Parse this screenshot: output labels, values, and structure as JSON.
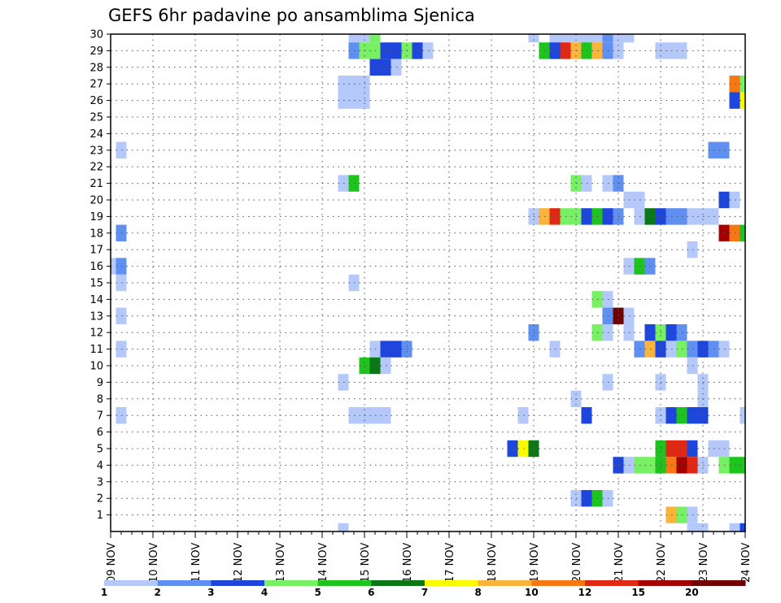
{
  "chart_data": {
    "type": "heatmap",
    "title": "GEFS 6hr padavine po ansamblima Sjenica",
    "xlabel": "",
    "ylabel": "",
    "x_labels": [
      "09 NOV",
      "10 NOV",
      "11 NOV",
      "12 NOV",
      "13 NOV",
      "14 NOV",
      "15 NOV",
      "16 NOV",
      "17 NOV",
      "18 NOV",
      "19 NOV",
      "20 NOV",
      "21 NOV",
      "22 NOV",
      "23 NOV",
      "24 NOV"
    ],
    "y_labels": [
      "1",
      "2",
      "3",
      "4",
      "5",
      "6",
      "7",
      "8",
      "9",
      "10",
      "11",
      "12",
      "13",
      "14",
      "15",
      "16",
      "17",
      "18",
      "19",
      "20",
      "21",
      "22",
      "23",
      "24",
      "25",
      "26",
      "27",
      "28",
      "29",
      "30"
    ],
    "y_range": [
      0,
      30
    ],
    "x_range_steps": [
      0,
      60
    ],
    "steps_per_day": 4,
    "grid": true,
    "legend_position": "bottom",
    "legend_labels": [
      "1",
      "2",
      "3",
      "4",
      "5",
      "6",
      "7",
      "8",
      "10",
      "12",
      "15",
      "20"
    ],
    "colors": [
      "#b4c8fa",
      "#5f8ff0",
      "#1e46dc",
      "#78f064",
      "#1ec31e",
      "#0a7814",
      "#fafa00",
      "#fab43c",
      "#f57814",
      "#e12814",
      "#a50000",
      "#6e0000"
    ],
    "cells": [
      {
        "member": 30,
        "step": 23,
        "class": 1
      },
      {
        "member": 30,
        "step": 24,
        "class": 1
      },
      {
        "member": 30,
        "step": 25,
        "class": 4
      },
      {
        "member": 30,
        "step": 40,
        "class": 1
      },
      {
        "member": 30,
        "step": 42,
        "class": 1
      },
      {
        "member": 30,
        "step": 43,
        "class": 1
      },
      {
        "member": 30,
        "step": 44,
        "class": 1
      },
      {
        "member": 30,
        "step": 45,
        "class": 1
      },
      {
        "member": 30,
        "step": 46,
        "class": 1
      },
      {
        "member": 30,
        "step": 47,
        "class": 2
      },
      {
        "member": 30,
        "step": 48,
        "class": 1
      },
      {
        "member": 30,
        "step": 49,
        "class": 1
      },
      {
        "member": 29,
        "step": 23,
        "class": 2
      },
      {
        "member": 29,
        "step": 24,
        "class": 4
      },
      {
        "member": 29,
        "step": 25,
        "class": 4
      },
      {
        "member": 29,
        "step": 26,
        "class": 3
      },
      {
        "member": 29,
        "step": 27,
        "class": 3
      },
      {
        "member": 29,
        "step": 28,
        "class": 4
      },
      {
        "member": 29,
        "step": 29,
        "class": 3
      },
      {
        "member": 29,
        "step": 30,
        "class": 1
      },
      {
        "member": 29,
        "step": 41,
        "class": 5
      },
      {
        "member": 29,
        "step": 42,
        "class": 3
      },
      {
        "member": 29,
        "step": 43,
        "class": 10
      },
      {
        "member": 29,
        "step": 44,
        "class": 8
      },
      {
        "member": 29,
        "step": 45,
        "class": 5
      },
      {
        "member": 29,
        "step": 46,
        "class": 8
      },
      {
        "member": 29,
        "step": 47,
        "class": 2
      },
      {
        "member": 29,
        "step": 48,
        "class": 1
      },
      {
        "member": 29,
        "step": 52,
        "class": 1
      },
      {
        "member": 29,
        "step": 53,
        "class": 1
      },
      {
        "member": 29,
        "step": 54,
        "class": 1
      },
      {
        "member": 28,
        "step": 25,
        "class": 3
      },
      {
        "member": 28,
        "step": 26,
        "class": 3
      },
      {
        "member": 28,
        "step": 27,
        "class": 1
      },
      {
        "member": 27,
        "step": 22,
        "class": 1
      },
      {
        "member": 27,
        "step": 23,
        "class": 1
      },
      {
        "member": 27,
        "step": 24,
        "class": 1
      },
      {
        "member": 27,
        "step": 59,
        "class": 9
      },
      {
        "member": 27,
        "step": 60,
        "class": 4
      },
      {
        "member": 26,
        "step": 22,
        "class": 1
      },
      {
        "member": 26,
        "step": 23,
        "class": 1
      },
      {
        "member": 26,
        "step": 24,
        "class": 1
      },
      {
        "member": 26,
        "step": 59,
        "class": 3
      },
      {
        "member": 26,
        "step": 60,
        "class": 7
      },
      {
        "member": 23,
        "step": 1,
        "class": 1
      },
      {
        "member": 23,
        "step": 57,
        "class": 2
      },
      {
        "member": 23,
        "step": 58,
        "class": 2
      },
      {
        "member": 21,
        "step": 22,
        "class": 1
      },
      {
        "member": 21,
        "step": 23,
        "class": 5
      },
      {
        "member": 21,
        "step": 44,
        "class": 4
      },
      {
        "member": 21,
        "step": 45,
        "class": 1
      },
      {
        "member": 21,
        "step": 47,
        "class": 1
      },
      {
        "member": 21,
        "step": 48,
        "class": 2
      },
      {
        "member": 20,
        "step": 49,
        "class": 1
      },
      {
        "member": 20,
        "step": 50,
        "class": 1
      },
      {
        "member": 20,
        "step": 58,
        "class": 3
      },
      {
        "member": 20,
        "step": 59,
        "class": 1
      },
      {
        "member": 19,
        "step": 40,
        "class": 1
      },
      {
        "member": 19,
        "step": 41,
        "class": 8
      },
      {
        "member": 19,
        "step": 42,
        "class": 10
      },
      {
        "member": 19,
        "step": 43,
        "class": 4
      },
      {
        "member": 19,
        "step": 44,
        "class": 4
      },
      {
        "member": 19,
        "step": 45,
        "class": 3
      },
      {
        "member": 19,
        "step": 46,
        "class": 5
      },
      {
        "member": 19,
        "step": 47,
        "class": 3
      },
      {
        "member": 19,
        "step": 48,
        "class": 2
      },
      {
        "member": 19,
        "step": 50,
        "class": 1
      },
      {
        "member": 19,
        "step": 51,
        "class": 6
      },
      {
        "member": 19,
        "step": 52,
        "class": 3
      },
      {
        "member": 19,
        "step": 53,
        "class": 2
      },
      {
        "member": 19,
        "step": 54,
        "class": 2
      },
      {
        "member": 19,
        "step": 55,
        "class": 1
      },
      {
        "member": 19,
        "step": 56,
        "class": 1
      },
      {
        "member": 19,
        "step": 57,
        "class": 1
      },
      {
        "member": 18,
        "step": 1,
        "class": 2
      },
      {
        "member": 18,
        "step": 58,
        "class": 11
      },
      {
        "member": 18,
        "step": 59,
        "class": 9
      },
      {
        "member": 18,
        "step": 60,
        "class": 5
      },
      {
        "member": 17,
        "step": 55,
        "class": 1
      },
      {
        "member": 16,
        "step": 0,
        "class": 1
      },
      {
        "member": 16,
        "step": 1,
        "class": 2
      },
      {
        "member": 16,
        "step": 49,
        "class": 1
      },
      {
        "member": 16,
        "step": 50,
        "class": 5
      },
      {
        "member": 16,
        "step": 51,
        "class": 2
      },
      {
        "member": 15,
        "step": 1,
        "class": 1
      },
      {
        "member": 15,
        "step": 23,
        "class": 1
      },
      {
        "member": 14,
        "step": 46,
        "class": 4
      },
      {
        "member": 14,
        "step": 47,
        "class": 1
      },
      {
        "member": 13,
        "step": 1,
        "class": 1
      },
      {
        "member": 13,
        "step": 47,
        "class": 2
      },
      {
        "member": 13,
        "step": 48,
        "class": 12
      },
      {
        "member": 13,
        "step": 49,
        "class": 1
      },
      {
        "member": 12,
        "step": 40,
        "class": 2
      },
      {
        "member": 12,
        "step": 46,
        "class": 4
      },
      {
        "member": 12,
        "step": 47,
        "class": 1
      },
      {
        "member": 12,
        "step": 49,
        "class": 1
      },
      {
        "member": 12,
        "step": 51,
        "class": 3
      },
      {
        "member": 12,
        "step": 52,
        "class": 4
      },
      {
        "member": 12,
        "step": 53,
        "class": 3
      },
      {
        "member": 12,
        "step": 54,
        "class": 2
      },
      {
        "member": 11,
        "step": 1,
        "class": 1
      },
      {
        "member": 11,
        "step": 25,
        "class": 1
      },
      {
        "member": 11,
        "step": 26,
        "class": 3
      },
      {
        "member": 11,
        "step": 27,
        "class": 3
      },
      {
        "member": 11,
        "step": 28,
        "class": 2
      },
      {
        "member": 11,
        "step": 42,
        "class": 1
      },
      {
        "member": 11,
        "step": 50,
        "class": 2
      },
      {
        "member": 11,
        "step": 51,
        "class": 8
      },
      {
        "member": 11,
        "step": 52,
        "class": 3
      },
      {
        "member": 11,
        "step": 53,
        "class": 1
      },
      {
        "member": 11,
        "step": 54,
        "class": 4
      },
      {
        "member": 11,
        "step": 55,
        "class": 2
      },
      {
        "member": 11,
        "step": 56,
        "class": 3
      },
      {
        "member": 11,
        "step": 57,
        "class": 2
      },
      {
        "member": 11,
        "step": 58,
        "class": 1
      },
      {
        "member": 10,
        "step": 24,
        "class": 5
      },
      {
        "member": 10,
        "step": 25,
        "class": 6
      },
      {
        "member": 10,
        "step": 26,
        "class": 1
      },
      {
        "member": 10,
        "step": 55,
        "class": 1
      },
      {
        "member": 9,
        "step": 22,
        "class": 1
      },
      {
        "member": 9,
        "step": 47,
        "class": 1
      },
      {
        "member": 9,
        "step": 52,
        "class": 1
      },
      {
        "member": 9,
        "step": 56,
        "class": 1
      },
      {
        "member": 8,
        "step": 44,
        "class": 1
      },
      {
        "member": 8,
        "step": 56,
        "class": 1
      },
      {
        "member": 7,
        "step": 1,
        "class": 1
      },
      {
        "member": 7,
        "step": 23,
        "class": 1
      },
      {
        "member": 7,
        "step": 24,
        "class": 1
      },
      {
        "member": 7,
        "step": 25,
        "class": 1
      },
      {
        "member": 7,
        "step": 26,
        "class": 1
      },
      {
        "member": 7,
        "step": 39,
        "class": 1
      },
      {
        "member": 7,
        "step": 45,
        "class": 3
      },
      {
        "member": 7,
        "step": 52,
        "class": 1
      },
      {
        "member": 7,
        "step": 53,
        "class": 3
      },
      {
        "member": 7,
        "step": 54,
        "class": 5
      },
      {
        "member": 7,
        "step": 55,
        "class": 3
      },
      {
        "member": 7,
        "step": 56,
        "class": 3
      },
      {
        "member": 7,
        "step": 60,
        "class": 1
      },
      {
        "member": 5,
        "step": 38,
        "class": 3
      },
      {
        "member": 5,
        "step": 39,
        "class": 7
      },
      {
        "member": 5,
        "step": 40,
        "class": 6
      },
      {
        "member": 5,
        "step": 52,
        "class": 5
      },
      {
        "member": 5,
        "step": 53,
        "class": 10
      },
      {
        "member": 5,
        "step": 54,
        "class": 10
      },
      {
        "member": 5,
        "step": 55,
        "class": 3
      },
      {
        "member": 5,
        "step": 57,
        "class": 1
      },
      {
        "member": 5,
        "step": 58,
        "class": 1
      },
      {
        "member": 4,
        "step": 48,
        "class": 3
      },
      {
        "member": 4,
        "step": 49,
        "class": 1
      },
      {
        "member": 4,
        "step": 50,
        "class": 4
      },
      {
        "member": 4,
        "step": 51,
        "class": 4
      },
      {
        "member": 4,
        "step": 52,
        "class": 5
      },
      {
        "member": 4,
        "step": 53,
        "class": 9
      },
      {
        "member": 4,
        "step": 54,
        "class": 11
      },
      {
        "member": 4,
        "step": 55,
        "class": 10
      },
      {
        "member": 4,
        "step": 56,
        "class": 1
      },
      {
        "member": 4,
        "step": 58,
        "class": 4
      },
      {
        "member": 4,
        "step": 59,
        "class": 5
      },
      {
        "member": 4,
        "step": 60,
        "class": 5
      },
      {
        "member": 2,
        "step": 44,
        "class": 1
      },
      {
        "member": 2,
        "step": 45,
        "class": 3
      },
      {
        "member": 2,
        "step": 46,
        "class": 5
      },
      {
        "member": 2,
        "step": 47,
        "class": 1
      },
      {
        "member": 1,
        "step": 53,
        "class": 8
      },
      {
        "member": 1,
        "step": 54,
        "class": 4
      },
      {
        "member": 1,
        "step": 55,
        "class": 1
      },
      {
        "member": 0,
        "step": 22,
        "class": 1
      },
      {
        "member": 0,
        "step": 55,
        "class": 1
      },
      {
        "member": 0,
        "step": 56,
        "class": 1
      },
      {
        "member": 0,
        "step": 59,
        "class": 1
      },
      {
        "member": 0,
        "step": 60,
        "class": 3
      }
    ]
  }
}
